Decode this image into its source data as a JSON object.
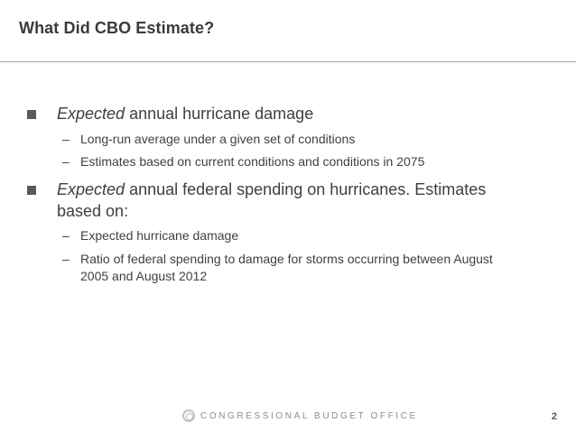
{
  "slide": {
    "title": "What Did CBO Estimate?"
  },
  "bullets": [
    {
      "emphasis": "Expected",
      "text": " annual hurricane damage",
      "subbullets": [
        "Long-run average under a given set of conditions",
        "Estimates based on current conditions and conditions in 2075"
      ]
    },
    {
      "emphasis": "Expected",
      "text": " annual federal spending on hurricanes. Estimates based on:",
      "subbullets": [
        "Expected hurricane damage",
        "Ratio of federal spending to damage for storms occurring between August 2005 and August 2012"
      ]
    }
  ],
  "footer": {
    "organization": "CONGRESSIONAL BUDGET OFFICE",
    "page_number": "2"
  },
  "colors": {
    "title": "#3a3a3a",
    "body_text": "#3f3f3f",
    "rule": "#a6a6a6",
    "footer_text": "#8c8c8c"
  }
}
